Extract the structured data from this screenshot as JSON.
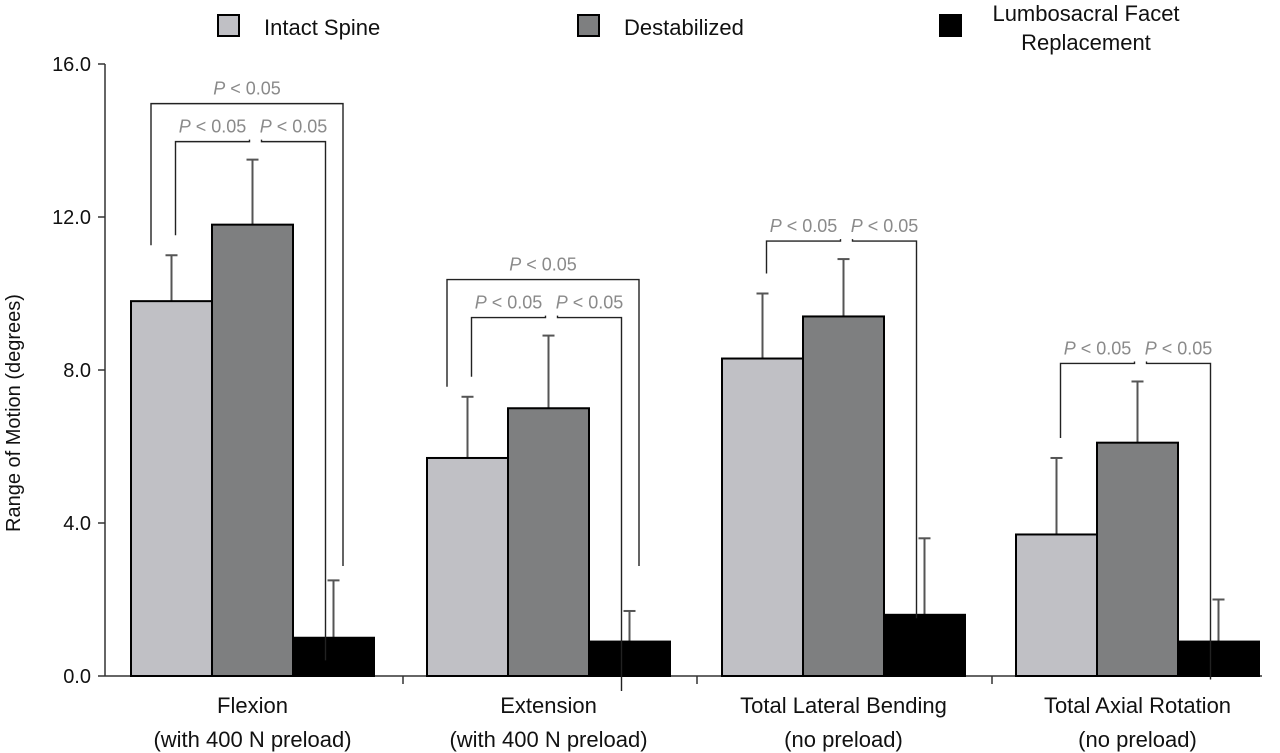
{
  "chart_data": {
    "type": "bar",
    "ylabel": "Range of Motion (degrees)",
    "ylim": [
      0,
      16
    ],
    "yticks": [
      "0.0",
      "4.0",
      "8.0",
      "12.0",
      "16.0"
    ],
    "categories": [
      [
        "Flexion",
        "(with 400 N preload)"
      ],
      [
        "Extension",
        "(with 400 N preload)"
      ],
      [
        "Total Lateral Bending",
        "(no preload)"
      ],
      [
        "Total Axial Rotation",
        "(no preload)"
      ]
    ],
    "series": [
      {
        "name": "Intact Spine",
        "color": "#c0c0c5",
        "values": [
          9.8,
          5.7,
          8.3,
          3.7
        ],
        "errors": [
          1.2,
          1.6,
          1.7,
          2.0
        ]
      },
      {
        "name": "Destabilized",
        "color": "#7e7f80",
        "values": [
          11.8,
          7.0,
          9.4,
          6.1
        ],
        "errors": [
          1.7,
          1.9,
          1.5,
          1.6
        ]
      },
      {
        "name": "Lumbosacral Facet Replacement",
        "color": "#000000",
        "values": [
          1.0,
          0.9,
          1.6,
          0.9
        ],
        "errors": [
          1.5,
          0.8,
          2.0,
          1.1
        ]
      }
    ],
    "legend_labels": [
      [
        "Intact Spine"
      ],
      [
        "Destabilized"
      ],
      [
        "Lumbosacral Facet",
        "Replacement"
      ]
    ],
    "annotations": [
      {
        "group": 0,
        "from": 0,
        "to": 1,
        "level": 0,
        "text_pre": "P",
        "text_post": " < 0.05"
      },
      {
        "group": 0,
        "from": 1,
        "to": 2,
        "level": 0,
        "text_pre": "P",
        "text_post": " < 0.05"
      },
      {
        "group": 0,
        "from": 0,
        "to": 2,
        "level": 1,
        "text_pre": "P",
        "text_post": " < 0.05"
      },
      {
        "group": 1,
        "from": 0,
        "to": 1,
        "level": 0,
        "text_pre": "P",
        "text_post": " < 0.05"
      },
      {
        "group": 1,
        "from": 1,
        "to": 2,
        "level": 0,
        "text_pre": "P",
        "text_post": " < 0.05"
      },
      {
        "group": 1,
        "from": 0,
        "to": 2,
        "level": 1,
        "text_pre": "P",
        "text_post": " < 0.05"
      },
      {
        "group": 2,
        "from": 0,
        "to": 1,
        "level": 0,
        "text_pre": "P",
        "text_post": " < 0.05"
      },
      {
        "group": 2,
        "from": 1,
        "to": 2,
        "level": 0,
        "text_pre": "P",
        "text_post": " < 0.05"
      },
      {
        "group": 3,
        "from": 0,
        "to": 1,
        "level": 0,
        "text_pre": "P",
        "text_post": " < 0.05"
      },
      {
        "group": 3,
        "from": 1,
        "to": 2,
        "level": 0,
        "text_pre": "P",
        "text_post": " < 0.05"
      }
    ],
    "grid": false,
    "legend_position": "top"
  }
}
